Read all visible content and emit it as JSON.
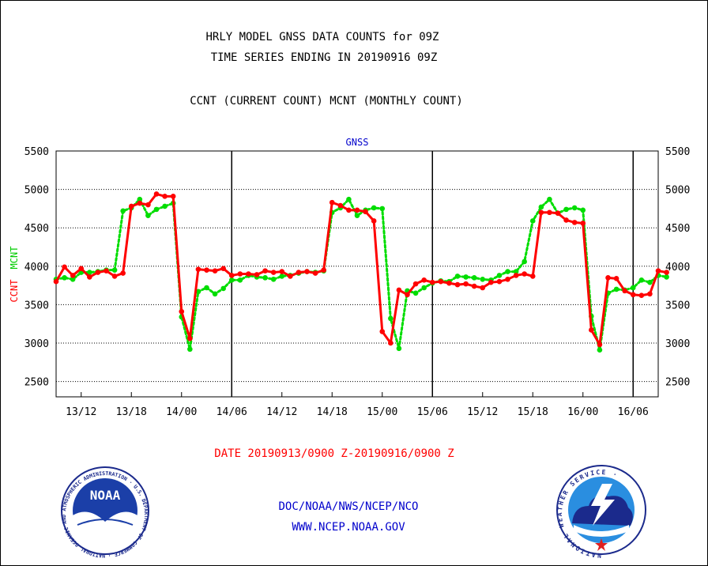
{
  "header": {
    "title_line1": "HRLY MODEL GNSS DATA COUNTS for 09Z",
    "title_line2": "TIME SERIES ENDING IN 20190916 09Z",
    "subtitle": "CCNT (CURRENT COUNT) MCNT (MONTHLY COUNT)"
  },
  "footer": {
    "date_range": "DATE 20190913/0900 Z-20190916/0900 Z",
    "org_line": "DOC/NOAA/NWS/NCEP/NCO",
    "url_line": "WWW.NCEP.NOAA.GOV"
  },
  "logos": {
    "noaa_center_text": "NOAA",
    "noaa_ring_text": "NATIONAL OCEANIC AND ATMOSPHERIC ADMINISTRATION · U.S. DEPARTMENT OF COMMERCE ·",
    "nws_ring_text": "NATIONAL WEATHER SERVICE ·"
  },
  "colors": {
    "current": "#ff0000",
    "monthly": "#00dd00",
    "text_blue": "#0000cc",
    "grid": "#000000"
  },
  "chart_data": {
    "type": "line",
    "title": "GNSS",
    "ylabel_left": [
      "CCNT",
      "MCNT"
    ],
    "ylim": [
      2300,
      5500
    ],
    "yticks": [
      2500,
      3000,
      3500,
      4000,
      4500,
      5000,
      5500
    ],
    "x_unit": "hours from 20190913/0900 Z",
    "xlim": [
      0,
      72
    ],
    "xticks": [
      {
        "label": "13/12",
        "hour": 3
      },
      {
        "label": "13/18",
        "hour": 9
      },
      {
        "label": "14/00",
        "hour": 15
      },
      {
        "label": "14/06",
        "hour": 21
      },
      {
        "label": "14/12",
        "hour": 27
      },
      {
        "label": "14/18",
        "hour": 33
      },
      {
        "label": "15/00",
        "hour": 39
      },
      {
        "label": "15/06",
        "hour": 45
      },
      {
        "label": "15/12",
        "hour": 51
      },
      {
        "label": "15/18",
        "hour": 57
      },
      {
        "label": "16/00",
        "hour": 63
      },
      {
        "label": "16/06",
        "hour": 69
      }
    ],
    "day_boundaries": [
      21,
      45,
      69
    ],
    "series": [
      {
        "name": "CCNT",
        "style": "solid",
        "values": [
          3800,
          3990,
          3880,
          3970,
          3860,
          3920,
          3940,
          3870,
          3910,
          4780,
          4820,
          4800,
          4940,
          4910,
          4910,
          3410,
          3060,
          3960,
          3950,
          3940,
          3970,
          3880,
          3900,
          3900,
          3890,
          3940,
          3920,
          3930,
          3870,
          3920,
          3930,
          3910,
          3950,
          4830,
          4790,
          4730,
          4730,
          4710,
          4590,
          3150,
          3000,
          3690,
          3630,
          3770,
          3820,
          3790,
          3800,
          3780,
          3760,
          3770,
          3740,
          3720,
          3790,
          3800,
          3830,
          3880,
          3900,
          3870,
          4700,
          4700,
          4690,
          4600,
          4570,
          4560,
          3170,
          2980,
          3850,
          3840,
          3680,
          3630,
          3620,
          3640,
          3940,
          3920
        ]
      },
      {
        "name": "MCNT",
        "style": "dotted",
        "values": [
          3830,
          3850,
          3830,
          3920,
          3920,
          3930,
          3950,
          3950,
          4720,
          4760,
          4870,
          4660,
          4740,
          4780,
          4820,
          3340,
          2920,
          3670,
          3720,
          3640,
          3710,
          3820,
          3820,
          3880,
          3860,
          3850,
          3830,
          3870,
          3880,
          3910,
          3930,
          3920,
          3940,
          4700,
          4760,
          4870,
          4660,
          4730,
          4760,
          4750,
          3320,
          2930,
          3680,
          3650,
          3720,
          3780,
          3810,
          3800,
          3870,
          3860,
          3850,
          3830,
          3820,
          3880,
          3930,
          3930,
          4060,
          4590,
          4770,
          4870,
          4690,
          4740,
          4760,
          4730,
          3350,
          2910,
          3650,
          3700,
          3690,
          3720,
          3820,
          3790,
          3880,
          3860
        ]
      }
    ]
  }
}
